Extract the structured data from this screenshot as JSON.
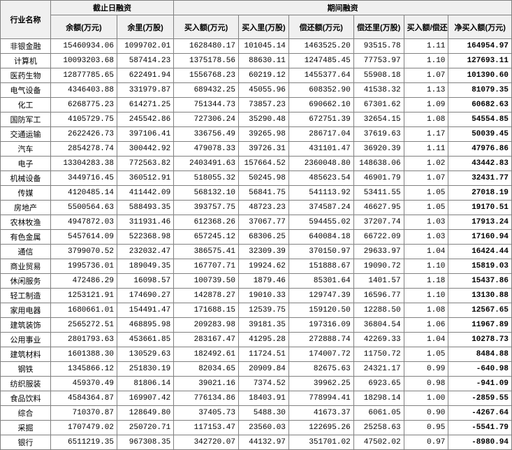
{
  "headers": {
    "group1": "截止日融资",
    "group2": "期间融资",
    "name": "行业名称",
    "balance": "余额(万元)",
    "balanceVol": "余里(万股)",
    "buyAmt": "买入额(万元)",
    "buyVol": "买入里(万股)",
    "repayAmt": "偿还额(万元)",
    "repayVol": "偿还里(万股)",
    "ratio": "买入额/偿还额",
    "netBuy": "净买入额(万元)"
  },
  "rows": [
    {
      "name": "非银金融",
      "balance": "15460934.06",
      "balVol": "1099702.01",
      "buy": "1628480.17",
      "buyVol": "101045.14",
      "repay": "1463525.20",
      "repayVol": "93515.78",
      "ratio": "1.11",
      "net": "164954.97"
    },
    {
      "name": "计算机",
      "balance": "10093203.68",
      "balVol": "587414.23",
      "buy": "1375178.56",
      "buyVol": "88630.11",
      "repay": "1247485.45",
      "repayVol": "77753.97",
      "ratio": "1.10",
      "net": "127693.11"
    },
    {
      "name": "医药生物",
      "balance": "12877785.65",
      "balVol": "622491.94",
      "buy": "1556768.23",
      "buyVol": "60219.12",
      "repay": "1455377.64",
      "repayVol": "55908.18",
      "ratio": "1.07",
      "net": "101390.60"
    },
    {
      "name": "电气设备",
      "balance": "4346403.88",
      "balVol": "331979.87",
      "buy": "689432.25",
      "buyVol": "45055.96",
      "repay": "608352.90",
      "repayVol": "41538.32",
      "ratio": "1.13",
      "net": "81079.35"
    },
    {
      "name": "化工",
      "balance": "6268775.23",
      "balVol": "614271.25",
      "buy": "751344.73",
      "buyVol": "73857.23",
      "repay": "690662.10",
      "repayVol": "67301.62",
      "ratio": "1.09",
      "net": "60682.63"
    },
    {
      "name": "国防军工",
      "balance": "4105729.75",
      "balVol": "245542.86",
      "buy": "727306.24",
      "buyVol": "35290.48",
      "repay": "672751.39",
      "repayVol": "32654.15",
      "ratio": "1.08",
      "net": "54554.85"
    },
    {
      "name": "交通运输",
      "balance": "2622426.73",
      "balVol": "397106.41",
      "buy": "336756.49",
      "buyVol": "39265.98",
      "repay": "286717.04",
      "repayVol": "37619.63",
      "ratio": "1.17",
      "net": "50039.45"
    },
    {
      "name": "汽车",
      "balance": "2854278.74",
      "balVol": "300442.92",
      "buy": "479078.33",
      "buyVol": "39726.31",
      "repay": "431101.47",
      "repayVol": "36920.39",
      "ratio": "1.11",
      "net": "47976.86"
    },
    {
      "name": "电子",
      "balance": "13304283.38",
      "balVol": "772563.82",
      "buy": "2403491.63",
      "buyVol": "157664.52",
      "repay": "2360048.80",
      "repayVol": "148638.06",
      "ratio": "1.02",
      "net": "43442.83"
    },
    {
      "name": "机械设备",
      "balance": "3449716.45",
      "balVol": "360512.91",
      "buy": "518055.32",
      "buyVol": "50245.98",
      "repay": "485623.54",
      "repayVol": "46901.79",
      "ratio": "1.07",
      "net": "32431.77"
    },
    {
      "name": "传媒",
      "balance": "4120485.14",
      "balVol": "411442.09",
      "buy": "568132.10",
      "buyVol": "56841.75",
      "repay": "541113.92",
      "repayVol": "53411.55",
      "ratio": "1.05",
      "net": "27018.19"
    },
    {
      "name": "房地产",
      "balance": "5500564.63",
      "balVol": "588493.35",
      "buy": "393757.75",
      "buyVol": "48723.23",
      "repay": "374587.24",
      "repayVol": "46627.95",
      "ratio": "1.05",
      "net": "19170.51"
    },
    {
      "name": "农林牧渔",
      "balance": "4947872.03",
      "balVol": "311931.46",
      "buy": "612368.26",
      "buyVol": "37067.77",
      "repay": "594455.02",
      "repayVol": "37207.74",
      "ratio": "1.03",
      "net": "17913.24"
    },
    {
      "name": "有色金属",
      "balance": "5457614.09",
      "balVol": "522368.98",
      "buy": "657245.12",
      "buyVol": "68306.25",
      "repay": "640084.18",
      "repayVol": "66722.09",
      "ratio": "1.03",
      "net": "17160.94"
    },
    {
      "name": "通信",
      "balance": "3799070.52",
      "balVol": "232032.47",
      "buy": "386575.41",
      "buyVol": "32309.39",
      "repay": "370150.97",
      "repayVol": "29633.97",
      "ratio": "1.04",
      "net": "16424.44"
    },
    {
      "name": "商业贸易",
      "balance": "1995736.01",
      "balVol": "189049.35",
      "buy": "167707.71",
      "buyVol": "19924.62",
      "repay": "151888.67",
      "repayVol": "19090.72",
      "ratio": "1.10",
      "net": "15819.03"
    },
    {
      "name": "休闲服务",
      "balance": "472486.29",
      "balVol": "16098.57",
      "buy": "100739.50",
      "buyVol": "1879.46",
      "repay": "85301.64",
      "repayVol": "1401.57",
      "ratio": "1.18",
      "net": "15437.86"
    },
    {
      "name": "轻工制造",
      "balance": "1253121.91",
      "balVol": "174690.27",
      "buy": "142878.27",
      "buyVol": "19010.33",
      "repay": "129747.39",
      "repayVol": "16596.77",
      "ratio": "1.10",
      "net": "13130.88"
    },
    {
      "name": "家用电器",
      "balance": "1680661.01",
      "balVol": "154491.47",
      "buy": "171688.15",
      "buyVol": "12539.75",
      "repay": "159120.50",
      "repayVol": "12288.50",
      "ratio": "1.08",
      "net": "12567.65"
    },
    {
      "name": "建筑装饰",
      "balance": "2565272.51",
      "balVol": "468895.98",
      "buy": "209283.98",
      "buyVol": "39181.35",
      "repay": "197316.09",
      "repayVol": "36804.54",
      "ratio": "1.06",
      "net": "11967.89"
    },
    {
      "name": "公用事业",
      "balance": "2801793.63",
      "balVol": "453661.85",
      "buy": "283167.47",
      "buyVol": "41295.28",
      "repay": "272888.74",
      "repayVol": "42269.33",
      "ratio": "1.04",
      "net": "10278.73"
    },
    {
      "name": "建筑材料",
      "balance": "1601388.30",
      "balVol": "130529.63",
      "buy": "182492.61",
      "buyVol": "11724.51",
      "repay": "174007.72",
      "repayVol": "11750.72",
      "ratio": "1.05",
      "net": "8484.88"
    },
    {
      "name": "钢铁",
      "balance": "1345866.12",
      "balVol": "251830.19",
      "buy": "82034.65",
      "buyVol": "20909.84",
      "repay": "82675.63",
      "repayVol": "24321.17",
      "ratio": "0.99",
      "net": "-640.98"
    },
    {
      "name": "纺织服装",
      "balance": "459370.49",
      "balVol": "81806.14",
      "buy": "39021.16",
      "buyVol": "7374.52",
      "repay": "39962.25",
      "repayVol": "6923.65",
      "ratio": "0.98",
      "net": "-941.09"
    },
    {
      "name": "食品饮料",
      "balance": "4584364.87",
      "balVol": "169907.42",
      "buy": "776134.86",
      "buyVol": "18403.91",
      "repay": "778994.41",
      "repayVol": "18298.14",
      "ratio": "1.00",
      "net": "-2859.55"
    },
    {
      "name": "综合",
      "balance": "710370.87",
      "balVol": "128649.80",
      "buy": "37405.73",
      "buyVol": "5488.30",
      "repay": "41673.37",
      "repayVol": "6061.05",
      "ratio": "0.90",
      "net": "-4267.64"
    },
    {
      "name": "采掘",
      "balance": "1707479.02",
      "balVol": "250720.71",
      "buy": "117153.47",
      "buyVol": "23560.03",
      "repay": "122695.26",
      "repayVol": "25258.63",
      "ratio": "0.95",
      "net": "-5541.79"
    },
    {
      "name": "银行",
      "balance": "6511219.35",
      "balVol": "967308.35",
      "buy": "342720.07",
      "buyVol": "44132.97",
      "repay": "351701.02",
      "repayVol": "47502.02",
      "ratio": "0.97",
      "net": "-8980.94"
    }
  ],
  "style": {
    "borderColor": "#808080",
    "headerBg": "#f0f0f0",
    "fontSize": 11,
    "boldNetColumn": true
  }
}
